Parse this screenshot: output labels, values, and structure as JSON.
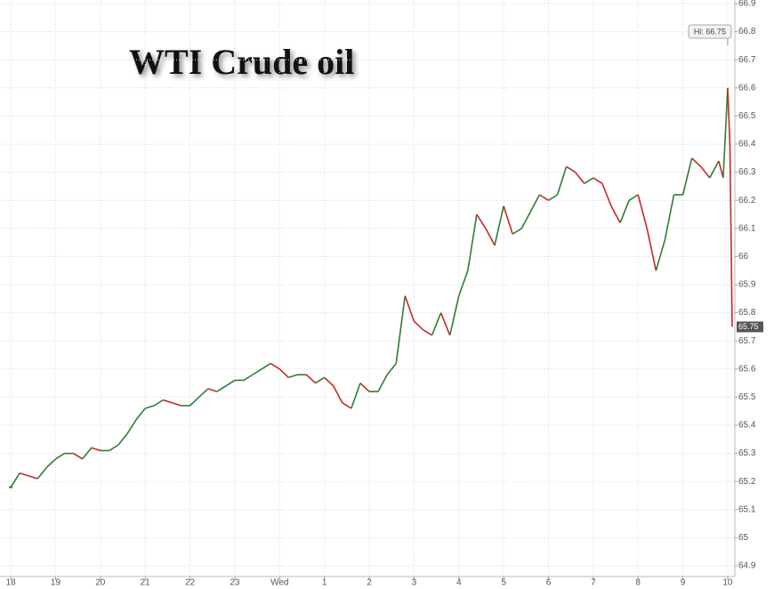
{
  "chart_data": {
    "type": "line",
    "title": "WTI Crude oil",
    "x": [
      0,
      0.2,
      0.4,
      0.6,
      0.8,
      1.0,
      1.2,
      1.4,
      1.6,
      1.8,
      2.0,
      2.2,
      2.4,
      2.6,
      2.8,
      3.0,
      3.2,
      3.4,
      3.6,
      3.8,
      4.0,
      4.2,
      4.4,
      4.6,
      4.8,
      5.0,
      5.2,
      5.4,
      5.6,
      5.8,
      6.0,
      6.2,
      6.4,
      6.6,
      6.8,
      7.0,
      7.2,
      7.4,
      7.6,
      7.8,
      8.0,
      8.2,
      8.4,
      8.6,
      8.8,
      9.0,
      9.2,
      9.4,
      9.6,
      9.8,
      10.0,
      10.2,
      10.4,
      10.6,
      10.8,
      11.0,
      11.2,
      11.4,
      11.6,
      11.8,
      12.0,
      12.2,
      12.4,
      12.6,
      12.8,
      13.0,
      13.2,
      13.4,
      13.6,
      13.8,
      14.0,
      14.2,
      14.4,
      14.6,
      14.8,
      15.0,
      15.2,
      15.4,
      15.6,
      15.8,
      15.9,
      16.0,
      16.05,
      16.1
    ],
    "values": [
      65.18,
      65.23,
      65.22,
      65.21,
      65.25,
      65.28,
      65.3,
      65.3,
      65.28,
      65.32,
      65.31,
      65.31,
      65.33,
      65.37,
      65.42,
      65.46,
      65.47,
      65.49,
      65.48,
      65.47,
      65.47,
      65.5,
      65.53,
      65.52,
      65.54,
      65.56,
      65.56,
      65.58,
      65.6,
      65.62,
      65.6,
      65.57,
      65.58,
      65.58,
      65.55,
      65.57,
      65.54,
      65.48,
      65.46,
      65.55,
      65.52,
      65.52,
      65.58,
      65.62,
      65.86,
      65.77,
      65.74,
      65.72,
      65.8,
      65.72,
      65.86,
      65.95,
      66.15,
      66.1,
      66.04,
      66.18,
      66.08,
      66.1,
      66.16,
      66.22,
      66.2,
      66.22,
      66.32,
      66.3,
      66.26,
      66.28,
      66.26,
      66.18,
      66.12,
      66.2,
      66.22,
      66.1,
      65.95,
      66.06,
      66.22,
      66.22,
      66.35,
      66.32,
      66.28,
      66.34,
      66.28,
      66.6,
      66.4,
      65.75
    ],
    "up_color": "#2e7d32",
    "down_color": "#c62828",
    "xlim": [
      -0.24,
      16.16
    ],
    "xticks": [
      {
        "value": 0,
        "label": "18"
      },
      {
        "value": 1,
        "label": "19"
      },
      {
        "value": 2,
        "label": "20"
      },
      {
        "value": 3,
        "label": "21"
      },
      {
        "value": 4,
        "label": "22"
      },
      {
        "value": 5,
        "label": "23"
      },
      {
        "value": 6,
        "label": "Wed"
      },
      {
        "value": 7,
        "label": "1"
      },
      {
        "value": 8,
        "label": "2"
      },
      {
        "value": 9,
        "label": "3"
      },
      {
        "value": 10,
        "label": "4"
      },
      {
        "value": 11,
        "label": "5"
      },
      {
        "value": 12,
        "label": "6"
      },
      {
        "value": 13,
        "label": "7"
      },
      {
        "value": 14,
        "label": "8"
      },
      {
        "value": 15,
        "label": "9"
      },
      {
        "value": 16,
        "label": "10"
      }
    ],
    "ylim": [
      64.9,
      66.9
    ],
    "yticks": [
      64.9,
      65,
      65.1,
      65.2,
      65.3,
      65.4,
      65.5,
      65.6,
      65.7,
      65.8,
      65.9,
      66,
      66.1,
      66.2,
      66.3,
      66.4,
      66.5,
      66.6,
      66.7,
      66.8,
      66.9
    ],
    "grid": true,
    "high_annotation": {
      "x": 16.0,
      "value": 66.75,
      "label": "Hi: 66.75"
    },
    "last_price": 65.75
  }
}
